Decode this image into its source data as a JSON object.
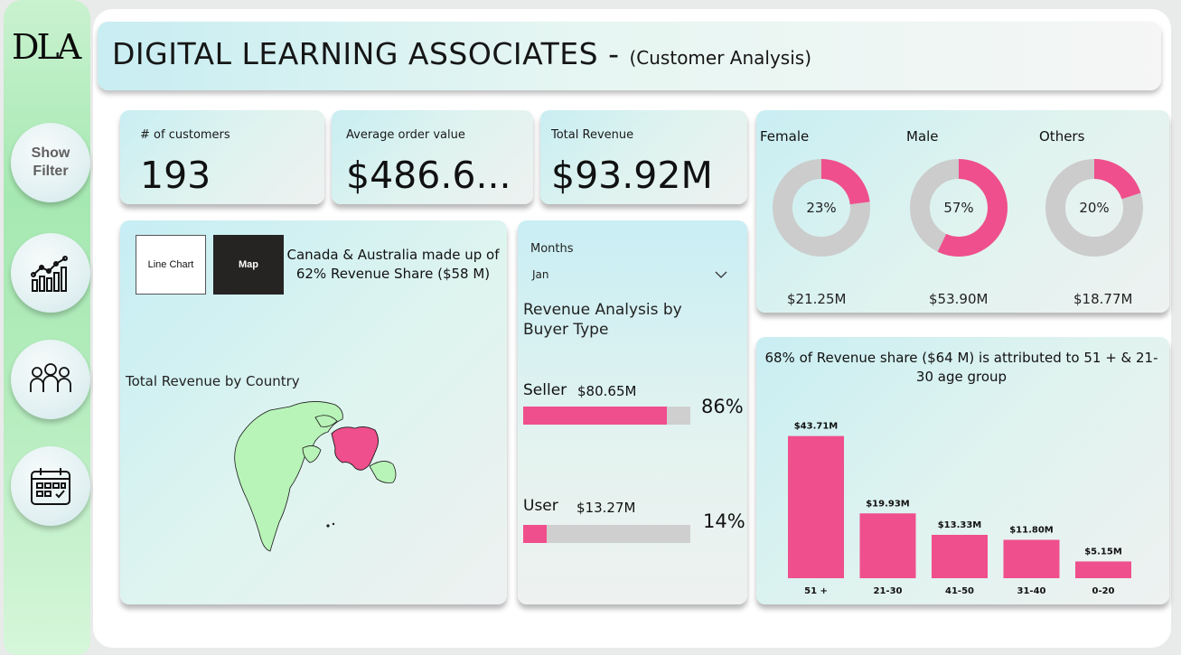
{
  "sidebar": {
    "logo": "DLA",
    "filter_button_line1": "Show",
    "filter_button_line2": "Filter"
  },
  "header": {
    "title": "DIGITAL LEARNING ASSOCIATES - ",
    "subtitle": "(Customer Analysis)"
  },
  "kpis": [
    {
      "label": "# of customers",
      "value": "193"
    },
    {
      "label": "Average order value",
      "value": "$486.6..."
    },
    {
      "label": "Total Revenue",
      "value": "$93.92M"
    }
  ],
  "gender": {
    "female": {
      "label": "Female",
      "pct_text": "23%",
      "pct": 23,
      "revenue": "$21.25M"
    },
    "male": {
      "label": "Male",
      "pct_text": "57%",
      "pct": 57,
      "revenue": "$53.90M"
    },
    "others": {
      "label": "Others",
      "pct_text": "20%",
      "pct": 20,
      "revenue": "$18.77M"
    },
    "colors": {
      "fill": "#ef4f8c",
      "rest": "#cccccc"
    }
  },
  "map_panel": {
    "line_chart_button": "Line Chart",
    "map_button": "Map",
    "insight": "Canada & Australia made up of 62% Revenue Share ($58 M)",
    "map_title": "Total Revenue by Country"
  },
  "buyer_panel": {
    "filter_label": "Months",
    "filter_value": "Jan",
    "title": "Revenue Analysis by Buyer Type",
    "seller": {
      "label": "Seller",
      "value": "$80.65M",
      "pct_text": "86%",
      "pct": 86
    },
    "user": {
      "label": "User",
      "value": "$13.27M",
      "pct_text": "14%",
      "pct": 14
    }
  },
  "age_panel": {
    "insight": "68% of Revenue share ($64 M) is attributed to 51 +  & 21-30 age group"
  },
  "chart_data": {
    "type": "bar",
    "categories": [
      "51 +",
      "21-30",
      "41-50",
      "31-40",
      "0-20"
    ],
    "values": [
      43.71,
      19.93,
      13.33,
      11.8,
      5.15
    ],
    "data_labels": [
      "$43.71M",
      "$19.93M",
      "$13.33M",
      "$11.80M",
      "$5.15M"
    ],
    "title": "68% of Revenue share ($64 M) is attributed to 51 +  & 21-30 age group",
    "ylim": [
      0,
      45
    ],
    "color": "#ef4f8c"
  }
}
